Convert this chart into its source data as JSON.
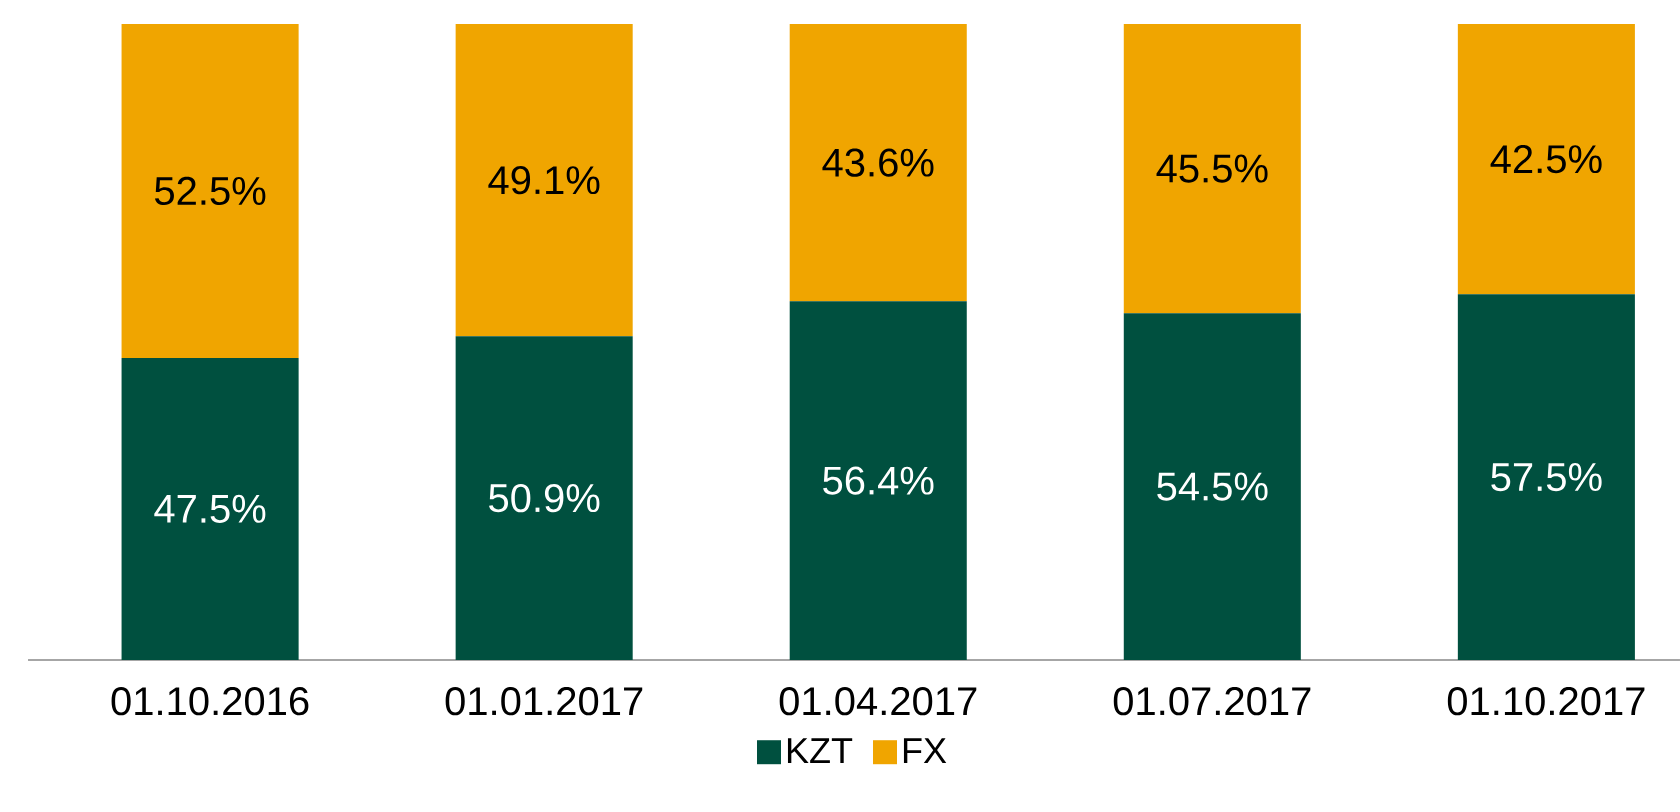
{
  "chart_data": {
    "type": "bar",
    "stacked": true,
    "categories": [
      "01.10.2016",
      "01.01.2017",
      "01.04.2017",
      "01.07.2017",
      "01.10.2017"
    ],
    "series": [
      {
        "name": "KZT",
        "color": "#00503f",
        "values": [
          47.5,
          50.9,
          56.4,
          54.5,
          57.5
        ],
        "value_labels": [
          "47.5%",
          "50.9%",
          "56.4%",
          "54.5%",
          "57.5%"
        ]
      },
      {
        "name": "FX",
        "color": "#f0a500",
        "values": [
          52.5,
          49.1,
          43.6,
          45.5,
          42.5
        ],
        "value_labels": [
          "52.5%",
          "49.1%",
          "43.6%",
          "45.5%",
          "42.5%"
        ]
      }
    ],
    "legend": "bottom"
  }
}
